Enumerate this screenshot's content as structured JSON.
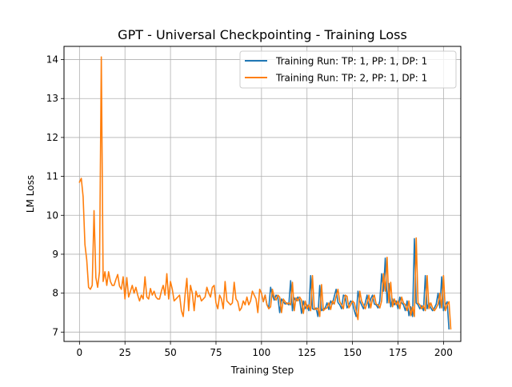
{
  "chart_data": {
    "type": "line",
    "title": "GPT - Universal Checkpointing - Training Loss",
    "xlabel": "Training Step",
    "ylabel": "LM Loss",
    "xlim": [
      -8.5,
      209.5
    ],
    "ylim": [
      6.76,
      14.34
    ],
    "xticks": [
      0,
      25,
      50,
      75,
      100,
      125,
      150,
      175,
      200
    ],
    "yticks": [
      7,
      8,
      9,
      10,
      11,
      12,
      13,
      14
    ],
    "grid": true,
    "legend_position": "upper right",
    "series": [
      {
        "name": "Training Run: TP: 1, PP: 1, DP: 1",
        "color": "#1f77b4",
        "x_start": 101,
        "values": [
          7.78,
          7.95,
          7.7,
          7.63,
          8.15,
          7.95,
          7.82,
          7.95,
          7.9,
          7.5,
          7.85,
          7.78,
          7.72,
          7.75,
          7.7,
          8.32,
          7.55,
          7.88,
          7.8,
          7.9,
          7.82,
          7.48,
          7.8,
          7.6,
          7.7,
          7.55,
          8.45,
          7.6,
          7.58,
          7.62,
          7.4,
          8.2,
          7.55,
          7.6,
          7.62,
          7.75,
          7.58,
          7.8,
          7.72,
          7.92,
          8.1,
          7.76,
          7.7,
          7.6,
          7.95,
          7.92,
          7.62,
          7.7,
          7.8,
          7.75,
          7.55,
          7.4,
          8.05,
          7.8,
          7.7,
          7.6,
          7.75,
          7.95,
          7.62,
          7.85,
          7.95,
          7.72,
          7.7,
          7.62,
          7.8,
          8.5,
          8.05,
          8.9,
          7.75,
          8.25,
          7.65,
          7.85,
          7.7,
          7.8,
          7.6,
          7.9,
          7.75,
          7.7,
          7.55,
          7.8,
          7.42,
          7.65,
          7.4,
          9.4,
          7.75,
          7.7,
          7.6,
          7.68,
          7.55,
          8.45,
          7.6,
          7.75,
          7.62,
          7.55,
          7.62,
          7.72,
          8.0,
          7.62,
          8.42,
          7.55,
          7.7,
          7.78,
          7.08
        ]
      },
      {
        "name": "Training Run: TP: 2, PP: 1, DP: 1",
        "color": "#ff7f0e",
        "x_start": 0,
        "values": [
          10.85,
          10.95,
          10.48,
          9.25,
          8.85,
          8.15,
          8.1,
          8.2,
          10.12,
          8.4,
          8.15,
          8.55,
          14.07,
          8.3,
          8.55,
          8.2,
          8.55,
          8.3,
          8.2,
          8.2,
          8.35,
          8.48,
          8.18,
          8.1,
          8.42,
          7.85,
          8.4,
          7.9,
          8.05,
          8.2,
          8.0,
          8.15,
          7.95,
          7.8,
          7.95,
          7.85,
          8.42,
          7.9,
          7.85,
          8.12,
          7.95,
          8.05,
          7.9,
          7.85,
          7.85,
          8.05,
          8.2,
          7.95,
          8.5,
          7.85,
          8.3,
          8.1,
          7.8,
          7.85,
          7.9,
          7.95,
          7.55,
          7.4,
          7.95,
          8.38,
          7.55,
          8.2,
          8.0,
          7.55,
          8.05,
          7.9,
          7.95,
          7.8,
          7.85,
          7.9,
          8.15,
          8.0,
          7.9,
          8.15,
          8.2,
          7.75,
          7.6,
          7.95,
          7.85,
          7.6,
          8.3,
          7.8,
          7.75,
          7.7,
          7.75,
          8.28,
          7.85,
          7.78,
          7.55,
          7.62,
          7.8,
          7.7,
          7.9,
          7.7,
          7.8,
          8.05,
          7.95,
          7.85,
          7.5,
          8.1,
          8.0,
          7.78,
          7.95,
          7.7,
          7.6,
          7.65,
          8.1,
          7.9,
          7.82,
          7.95,
          7.9,
          7.5,
          7.85,
          7.78,
          7.72,
          7.75,
          7.7,
          8.28,
          7.55,
          7.88,
          7.8,
          7.9,
          7.82,
          7.48,
          7.8,
          7.6,
          7.7,
          7.55,
          8.45,
          7.6,
          7.58,
          7.62,
          7.4,
          8.22,
          7.55,
          7.6,
          7.62,
          7.75,
          7.58,
          7.8,
          7.72,
          7.92,
          8.1,
          7.78,
          7.7,
          7.6,
          7.95,
          7.92,
          7.62,
          7.7,
          7.8,
          7.75,
          7.55,
          7.32,
          8.05,
          7.8,
          7.7,
          7.6,
          7.75,
          7.95,
          7.62,
          7.85,
          7.95,
          7.72,
          7.7,
          7.62,
          7.8,
          8.5,
          8.05,
          8.92,
          7.75,
          8.28,
          7.65,
          7.85,
          7.7,
          7.8,
          7.6,
          7.9,
          7.75,
          7.7,
          7.55,
          7.8,
          7.42,
          7.65,
          7.4,
          9.42,
          7.75,
          7.7,
          7.6,
          7.68,
          7.55,
          8.45,
          7.6,
          7.75,
          7.62,
          7.55,
          7.62,
          7.72,
          8.0,
          7.62,
          8.45,
          7.55,
          7.7,
          7.78,
          7.08
        ]
      }
    ]
  }
}
